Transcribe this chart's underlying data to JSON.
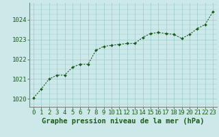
{
  "x": [
    0,
    1,
    2,
    3,
    4,
    5,
    6,
    7,
    8,
    9,
    10,
    11,
    12,
    13,
    14,
    15,
    16,
    17,
    18,
    19,
    20,
    21,
    22,
    23
  ],
  "y": [
    1020.05,
    1020.5,
    1021.0,
    1021.2,
    1021.2,
    1021.6,
    1021.75,
    1021.75,
    1022.45,
    1022.65,
    1022.7,
    1022.75,
    1022.8,
    1022.8,
    1023.1,
    1023.3,
    1023.35,
    1023.3,
    1023.25,
    1023.05,
    1023.25,
    1023.55,
    1023.75,
    1024.4
  ],
  "line_color": "#1a5c1a",
  "marker_color": "#1a5c1a",
  "bg_color": "#cce8e8",
  "grid_color": "#99cccc",
  "spine_color": "#808080",
  "xlabel": "Graphe pression niveau de la mer (hPa)",
  "xlabel_fontsize": 7.5,
  "xlabel_color": "#1a5c1a",
  "tick_label_color": "#1a5c1a",
  "tick_fontsize": 6.5,
  "ytick_labels": [
    1020,
    1021,
    1022,
    1023,
    1024
  ],
  "ylim": [
    1019.6,
    1024.85
  ],
  "xlim": [
    -0.5,
    23.5
  ]
}
